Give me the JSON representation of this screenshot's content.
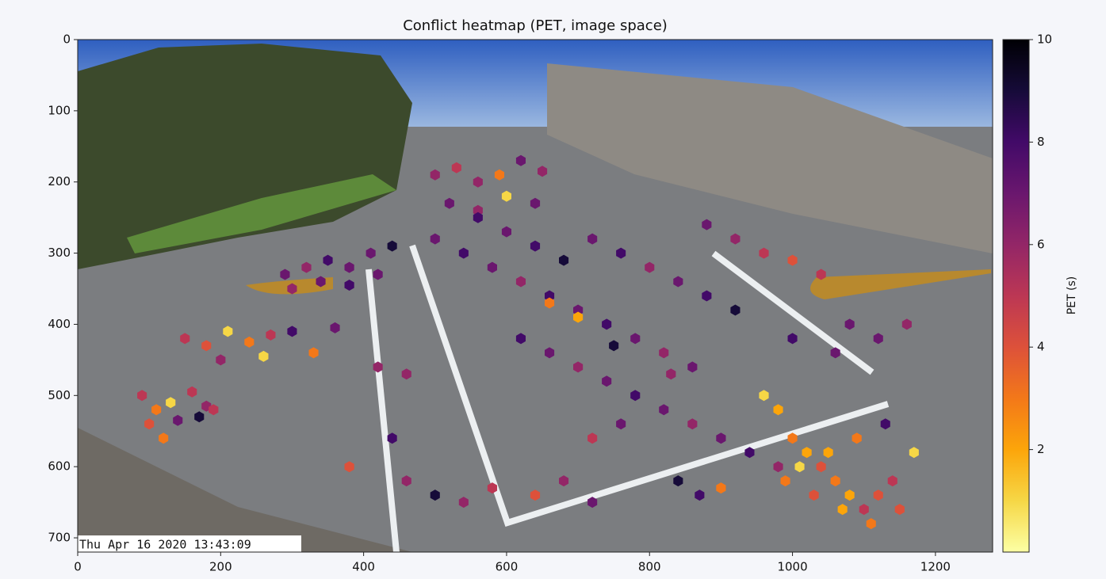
{
  "chart_data": {
    "type": "hexbin",
    "title": "Conflict heatmap (PET, image space)",
    "annotation": "Thu Apr 16  2020 13:43:09",
    "xlim": [
      0,
      1280
    ],
    "ylim": [
      720,
      0
    ],
    "xticks": [
      0,
      200,
      400,
      600,
      800,
      1000,
      1200
    ],
    "yticks": [
      0,
      100,
      200,
      300,
      400,
      500,
      600,
      700
    ],
    "colormap": "inferno_r",
    "clim": [
      0,
      10
    ],
    "cticks": [
      2,
      4,
      6,
      8,
      10
    ],
    "colorbar_label": "PET (s)",
    "x": [
      500,
      530,
      560,
      590,
      620,
      650,
      520,
      560,
      600,
      640,
      290,
      320,
      350,
      380,
      410,
      440,
      300,
      340,
      380,
      420,
      150,
      180,
      210,
      240,
      270,
      300,
      330,
      360,
      200,
      260,
      90,
      110,
      130,
      160,
      180,
      100,
      140,
      170,
      120,
      190,
      500,
      540,
      580,
      620,
      660,
      700,
      740,
      780,
      820,
      860,
      560,
      600,
      640,
      680,
      720,
      760,
      800,
      840,
      880,
      920,
      620,
      660,
      700,
      740,
      780,
      820,
      860,
      900,
      940,
      980,
      880,
      920,
      960,
      1000,
      1040,
      1080,
      1120,
      1160,
      1000,
      1060,
      960,
      980,
      1000,
      1020,
      1040,
      1060,
      1080,
      1100,
      1120,
      1140,
      990,
      1030,
      1070,
      1110,
      1150,
      1010,
      1050,
      1090,
      1130,
      1170,
      460,
      500,
      540,
      580,
      640,
      680,
      720,
      840,
      870,
      900,
      660,
      700,
      750,
      830,
      760,
      720,
      460,
      420,
      440,
      380
    ],
    "y": [
      190,
      180,
      200,
      190,
      170,
      185,
      230,
      240,
      220,
      230,
      330,
      320,
      310,
      320,
      300,
      290,
      350,
      340,
      345,
      330,
      420,
      430,
      410,
      425,
      415,
      410,
      440,
      405,
      450,
      445,
      500,
      520,
      510,
      495,
      515,
      540,
      535,
      530,
      560,
      520,
      280,
      300,
      320,
      340,
      360,
      380,
      400,
      420,
      440,
      460,
      250,
      270,
      290,
      310,
      280,
      300,
      320,
      340,
      360,
      380,
      420,
      440,
      460,
      480,
      500,
      520,
      540,
      560,
      580,
      600,
      260,
      280,
      300,
      310,
      330,
      400,
      420,
      400,
      420,
      440,
      500,
      520,
      560,
      580,
      600,
      620,
      640,
      660,
      640,
      620,
      620,
      640,
      660,
      680,
      660,
      600,
      580,
      560,
      540,
      580,
      620,
      640,
      650,
      630,
      640,
      620,
      650,
      620,
      640,
      630,
      370,
      390,
      430,
      470,
      540,
      560,
      470,
      460,
      560,
      600
    ],
    "values": [
      6,
      5,
      6,
      3,
      7,
      6,
      7,
      6,
      1,
      7,
      7,
      6,
      8,
      7,
      7,
      9,
      6,
      7,
      8,
      7,
      5,
      4,
      1,
      3,
      5,
      8,
      3,
      7,
      6,
      1,
      5,
      3,
      1,
      5,
      6,
      4,
      7,
      9,
      3,
      5,
      7,
      8,
      7,
      6,
      8,
      7,
      8,
      7,
      6,
      7,
      8,
      7,
      8,
      9,
      7,
      8,
      6,
      7,
      8,
      9,
      8,
      7,
      6,
      7,
      8,
      7,
      6,
      7,
      8,
      6,
      7,
      6,
      5,
      4,
      5,
      7,
      7,
      6,
      8,
      7,
      1,
      2,
      3,
      2,
      4,
      3,
      2,
      5,
      4,
      5,
      3,
      4,
      2,
      3,
      4,
      1,
      2,
      3,
      8,
      1,
      6,
      9,
      6,
      5,
      4,
      6,
      7,
      9,
      8,
      3,
      3,
      2,
      9,
      6,
      7,
      5,
      6,
      6,
      8,
      4
    ]
  }
}
